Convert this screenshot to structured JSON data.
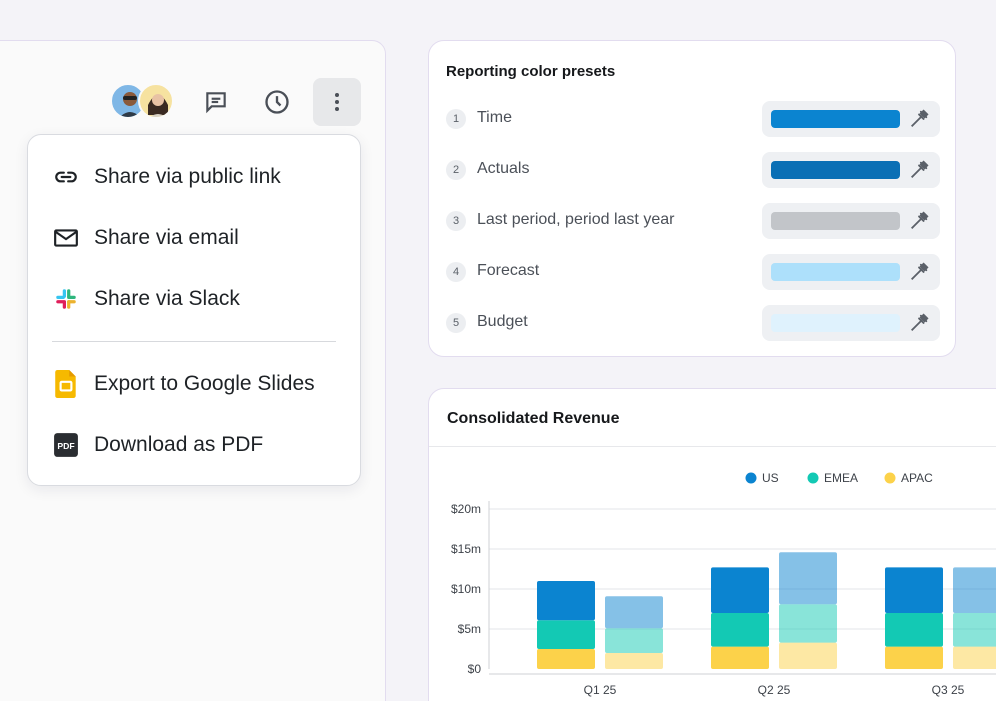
{
  "toolbar": {
    "avatars": [
      "user-avatar-1",
      "user-avatar-2"
    ],
    "icons": {
      "comments": "comment-icon",
      "history": "clock-icon",
      "more": "more-vertical-icon"
    }
  },
  "share_menu": {
    "items": [
      {
        "label": "Share via public link",
        "icon": "link-icon"
      },
      {
        "label": "Share via email",
        "icon": "mail-icon"
      },
      {
        "label": "Share via Slack",
        "icon": "slack-icon"
      },
      {
        "label": "Export to Google Slides",
        "icon": "google-slides-icon"
      },
      {
        "label": "Download as PDF",
        "icon": "pdf-icon"
      }
    ]
  },
  "presets": {
    "title": "Reporting color presets",
    "rows": [
      {
        "num": "1",
        "label": "Time",
        "color": "#0b84d0"
      },
      {
        "num": "2",
        "label": "Actuals",
        "color": "#0a6fb5"
      },
      {
        "num": "3",
        "label": "Last period, period last year",
        "color": "#c2c5c9"
      },
      {
        "num": "4",
        "label": "Forecast",
        "color": "#ade0fb"
      },
      {
        "num": "5",
        "label": "Budget",
        "color": "#dff2fd"
      }
    ]
  },
  "revenue": {
    "title": "Consolidated Revenue"
  },
  "chart_data": {
    "type": "bar",
    "stacked": true,
    "title": "Consolidated Revenue",
    "legend": {
      "position": "top-right"
    },
    "categories": [
      "Q1 25",
      "Q2 25",
      "Q3 25"
    ],
    "y_ticks": [
      "$0",
      "$5m",
      "$10m",
      "$15m",
      "$20m"
    ],
    "ylim": [
      0,
      20
    ],
    "grid": true,
    "series": [
      {
        "name": "APAC",
        "color": "#fcd24a",
        "values": [
          2.5,
          2.8,
          2.8
        ]
      },
      {
        "name": "EMEA",
        "color": "#13c9b4",
        "values": [
          3.6,
          4.2,
          4.2
        ]
      },
      {
        "name": "US",
        "color": "#0b84d0",
        "values": [
          4.9,
          5.7,
          5.7
        ]
      }
    ],
    "comparison": {
      "opacity": 0.5,
      "values": {
        "APAC": [
          2.0,
          3.3,
          2.8
        ],
        "EMEA": [
          3.1,
          4.8,
          4.2
        ],
        "US": [
          4.0,
          6.5,
          5.7
        ]
      }
    },
    "series_legend_order": [
      "US",
      "EMEA",
      "APAC"
    ]
  }
}
